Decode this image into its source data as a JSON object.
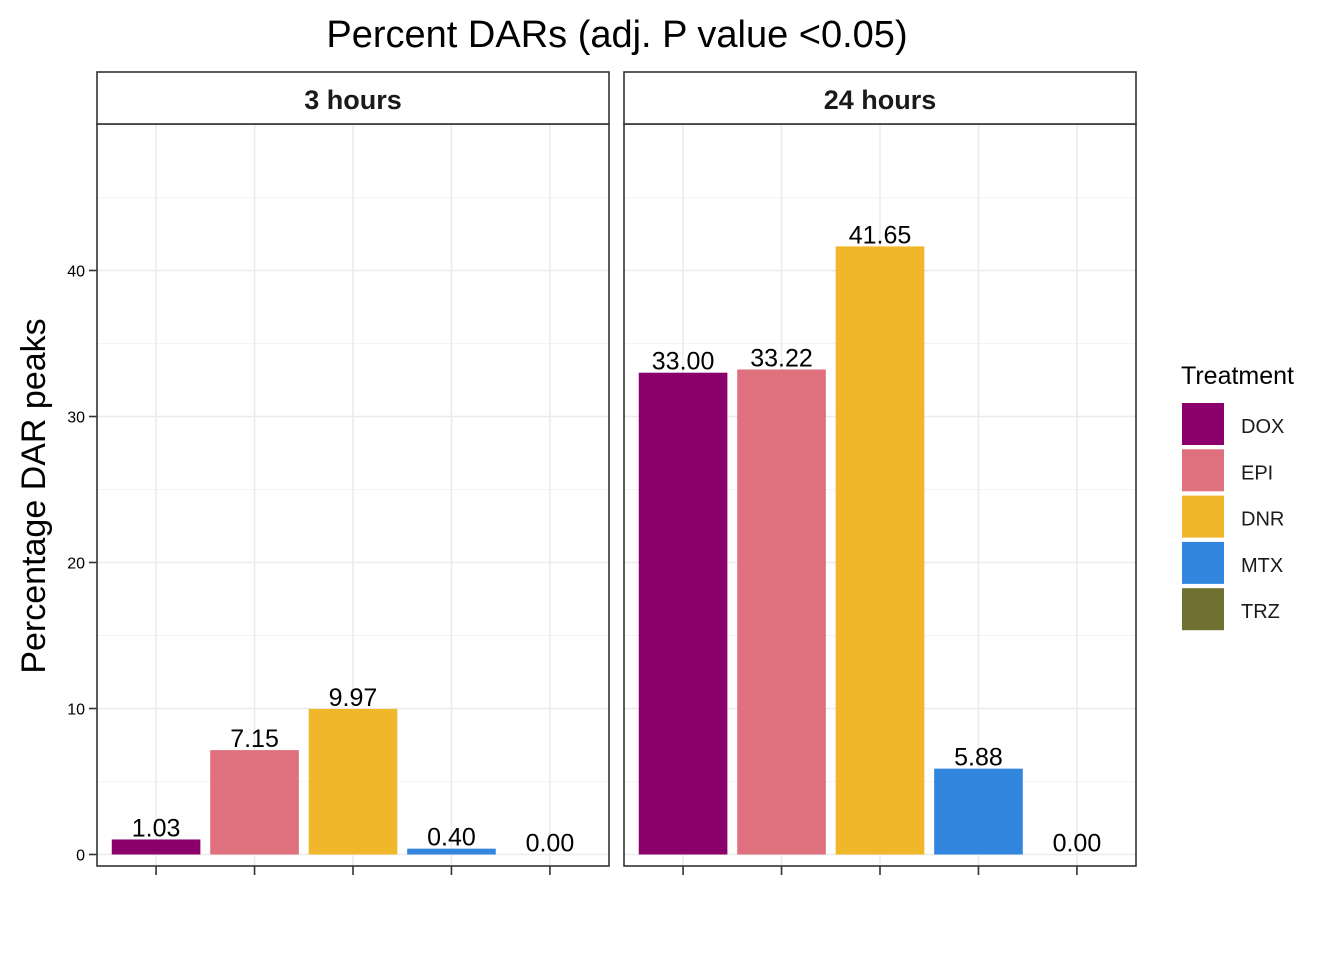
{
  "chart_data": {
    "type": "bar",
    "title": "Percent DARs (adj. P value <0.05)",
    "ylabel": "Percentage DAR peaks",
    "xlabel": "",
    "ylim": [
      0,
      50
    ],
    "y_ticks": [
      0,
      10,
      20,
      30,
      40
    ],
    "categories": [
      "DOX",
      "EPI",
      "DNR",
      "MTX",
      "TRZ"
    ],
    "x_tick_labels_shown": false,
    "grid": true,
    "legend": {
      "title": "Treatment",
      "placement": "right",
      "items": [
        {
          "name": "DOX",
          "color": "#8B006B"
        },
        {
          "name": "EPI",
          "color": "#DF707E"
        },
        {
          "name": "DNR",
          "color": "#F1B72B"
        },
        {
          "name": "MTX",
          "color": "#3386DE"
        },
        {
          "name": "TRZ",
          "color": "#707031"
        }
      ]
    },
    "panels": [
      {
        "label": "3 hours",
        "values": [
          1.03,
          7.15,
          9.97,
          0.4,
          0.0
        ],
        "value_labels": [
          "1.03",
          "7.15",
          "9.97",
          "0.40",
          "0.00"
        ]
      },
      {
        "label": "24 hours",
        "values": [
          33.0,
          33.22,
          41.65,
          5.88,
          0.0
        ],
        "value_labels": [
          "33.00",
          "33.22",
          "41.65",
          "5.88",
          "0.00"
        ]
      }
    ]
  }
}
